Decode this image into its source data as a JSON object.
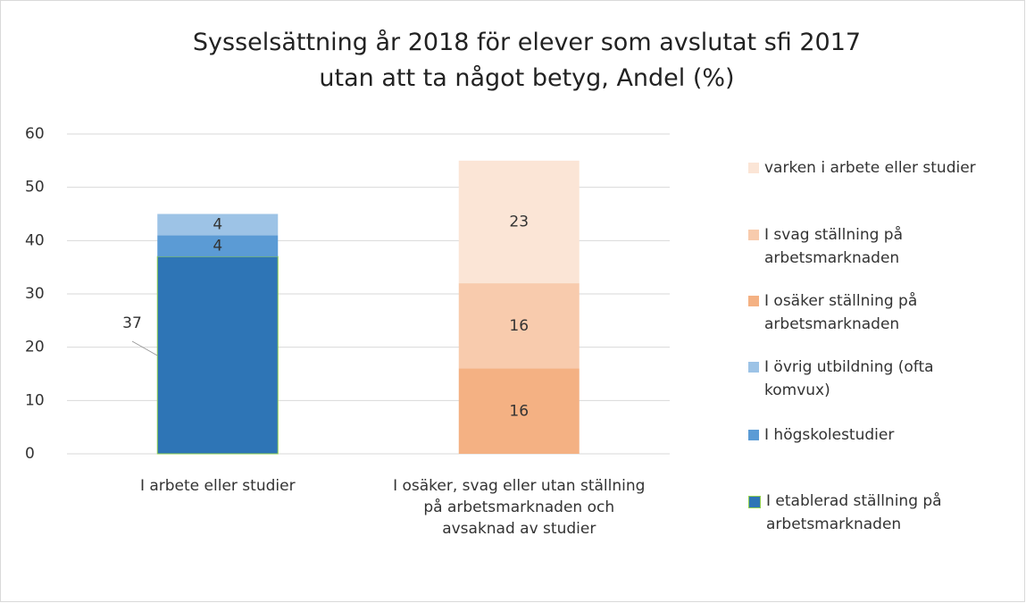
{
  "chart_data": {
    "type": "stacked_bar",
    "title": "Sysselsättning år 2018 för elever som avslutat sfi 2017 utan att ta något betyg, Andel (%)",
    "categories": [
      "I arbete eller studier",
      "I osäker, svag eller utan ställning på arbetsmarknaden och avsaknad av studier"
    ],
    "series": [
      {
        "name": "I etablerad ställning på arbetsmarknaden",
        "color": "#2e75b6",
        "values": [
          37,
          0
        ]
      },
      {
        "name": "I högskolestudier",
        "color": "#5b9bd5",
        "values": [
          4,
          0
        ]
      },
      {
        "name": "I övrig utbildning (ofta komvux)",
        "color": "#9dc3e6",
        "values": [
          4,
          0
        ]
      },
      {
        "name": "I osäker ställning på arbetsmarknaden",
        "color": "#f4b183",
        "values": [
          0,
          16
        ]
      },
      {
        "name": "I svag ställning på arbetsmarknaden",
        "color": "#f8cbad",
        "values": [
          0,
          16
        ]
      },
      {
        "name": "varken i arbete eller studier",
        "color": "#fbe5d6",
        "values": [
          0,
          23
        ]
      }
    ],
    "ylim": [
      0,
      60
    ],
    "yticks": [
      0,
      10,
      20,
      30,
      40,
      50,
      60
    ],
    "grid": true,
    "legend": "right"
  }
}
